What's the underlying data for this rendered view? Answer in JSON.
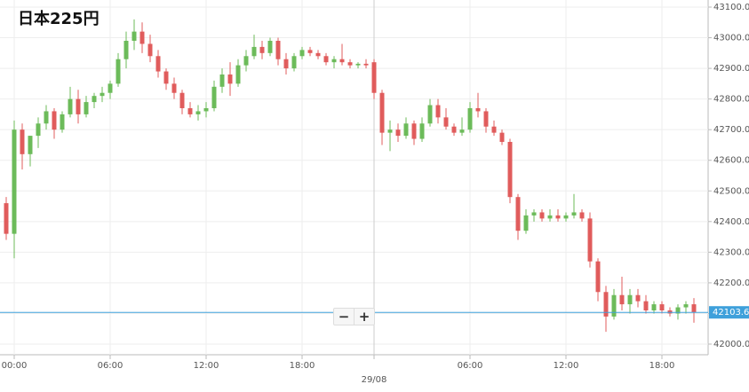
{
  "chart_data": {
    "type": "candlestick",
    "title": "日本225円",
    "categories": [
      null,
      "00:00",
      null,
      null,
      null,
      null,
      null,
      null,
      null,
      null,
      null,
      null,
      null,
      "06:00",
      null,
      null,
      null,
      null,
      null,
      null,
      null,
      null,
      null,
      null,
      null,
      "12:00",
      null,
      null,
      null,
      null,
      null,
      null,
      null,
      null,
      null,
      null,
      null,
      "18:00",
      null,
      null,
      null,
      null,
      null,
      null,
      null,
      null,
      "29/08",
      null,
      null,
      null,
      null,
      null,
      null,
      null,
      null,
      null,
      null,
      null,
      "06:00",
      null,
      null,
      null,
      null,
      null,
      null,
      null,
      null,
      null,
      null,
      null,
      "12:00",
      null,
      null,
      null,
      null,
      null,
      null,
      null,
      null,
      null,
      null,
      null,
      "18:00",
      null,
      null,
      null,
      null
    ],
    "open": [
      42460,
      42360,
      42700,
      42620,
      42680,
      42720,
      42760,
      42700,
      42750,
      42800,
      42750,
      42790,
      42810,
      42820,
      42850,
      42930,
      42990,
      43020,
      42980,
      42940,
      42890,
      42850,
      42820,
      42770,
      42750,
      42760,
      42770,
      42840,
      42880,
      42850,
      42910,
      42940,
      42970,
      42950,
      42990,
      42930,
      42900,
      42940,
      42960,
      42950,
      42940,
      42920,
      42930,
      42920,
      42910,
      42915,
      42920,
      42820,
      42690,
      42700,
      42680,
      42720,
      42670,
      42720,
      42780,
      42740,
      42710,
      42690,
      42700,
      42770,
      42760,
      42710,
      42690,
      42660,
      42480,
      42370,
      42420,
      42430,
      42410,
      42420,
      42410,
      42420,
      42430,
      42410,
      42270,
      42170,
      42090,
      42160,
      42130,
      42160,
      42140,
      42110,
      42130,
      42110,
      42100,
      42120,
      42130
    ],
    "high": [
      42480,
      42730,
      42720,
      42680,
      42740,
      42780,
      42770,
      42760,
      42840,
      42830,
      42810,
      42820,
      42840,
      42860,
      42950,
      43020,
      43060,
      43050,
      43010,
      42960,
      42900,
      42870,
      42830,
      42790,
      42780,
      42790,
      42860,
      42900,
      42920,
      42930,
      42960,
      43010,
      42990,
      43000,
      43000,
      42950,
      42950,
      42970,
      42970,
      42960,
      42950,
      42940,
      42980,
      42930,
      42920,
      42930,
      42930,
      42830,
      42730,
      42720,
      42740,
      42730,
      42740,
      42800,
      42800,
      42770,
      42720,
      42740,
      42790,
      42820,
      42770,
      42730,
      42700,
      42670,
      42490,
      42440,
      42440,
      42440,
      42440,
      42440,
      42430,
      42490,
      42440,
      42430,
      42280,
      42190,
      42180,
      42220,
      42180,
      42180,
      42160,
      42140,
      42140,
      42120,
      42130,
      42140,
      42150
    ],
    "low": [
      42340,
      42280,
      42570,
      42580,
      42640,
      42700,
      42670,
      42690,
      42740,
      42720,
      42740,
      42770,
      42790,
      42800,
      42840,
      42900,
      42960,
      42950,
      42920,
      42870,
      42830,
      42800,
      42750,
      42740,
      42730,
      42740,
      42760,
      42820,
      42810,
      42840,
      42890,
      42930,
      42930,
      42940,
      42910,
      42880,
      42890,
      42930,
      42940,
      42930,
      42910,
      42900,
      42910,
      42900,
      42900,
      42900,
      42800,
      42650,
      42630,
      42660,
      42670,
      42650,
      42660,
      42710,
      42720,
      42700,
      42680,
      42680,
      42690,
      42740,
      42690,
      42680,
      42650,
      42460,
      42340,
      42360,
      42400,
      42400,
      42400,
      42400,
      42400,
      42410,
      42400,
      42250,
      42140,
      42040,
      42080,
      42110,
      42100,
      42120,
      42100,
      42100,
      42100,
      42090,
      42080,
      42100,
      42070
    ],
    "close": [
      42360,
      42700,
      42620,
      42680,
      42720,
      42760,
      42700,
      42750,
      42800,
      42750,
      42790,
      42810,
      42820,
      42850,
      42930,
      42990,
      43020,
      42980,
      42940,
      42890,
      42850,
      42820,
      42770,
      42750,
      42760,
      42770,
      42840,
      42880,
      42850,
      42910,
      42940,
      42970,
      42950,
      42990,
      42930,
      42900,
      42940,
      42960,
      42950,
      42940,
      42920,
      42930,
      42920,
      42910,
      42915,
      42910,
      42820,
      42690,
      42700,
      42680,
      42720,
      42670,
      42720,
      42780,
      42740,
      42710,
      42690,
      42700,
      42770,
      42760,
      42710,
      42690,
      42660,
      42480,
      42370,
      42420,
      42430,
      42410,
      42420,
      42410,
      42420,
      42430,
      42410,
      42270,
      42170,
      42090,
      42160,
      42130,
      42160,
      42140,
      42110,
      42130,
      42110,
      42100,
      42120,
      42130,
      42103.6
    ],
    "up_color": "#6cbb5a",
    "down_color": "#e05c5c",
    "last_price": 42103.6,
    "last_price_color": "#3ea0db",
    "ylim": [
      42000,
      43100
    ],
    "yticks": [
      {
        "value": 42000,
        "label": "42000.0"
      },
      {
        "value": 42100,
        "label": "42100.0"
      },
      {
        "value": 42200,
        "label": "42200.0"
      },
      {
        "value": 42300,
        "label": "42300.0"
      },
      {
        "value": 42400,
        "label": "42400.0"
      },
      {
        "value": 42500,
        "label": "42500.0"
      },
      {
        "value": 42600,
        "label": "42600.0"
      },
      {
        "value": 42700,
        "label": "42700.0"
      },
      {
        "value": 42800,
        "label": "42800.0"
      },
      {
        "value": 42900,
        "label": "42900.0"
      },
      {
        "value": 43000,
        "label": "43000.0"
      },
      {
        "value": 43100,
        "label": "43100.0"
      }
    ],
    "grid": true
  },
  "zoom_controls": [
    "−",
    "+"
  ]
}
